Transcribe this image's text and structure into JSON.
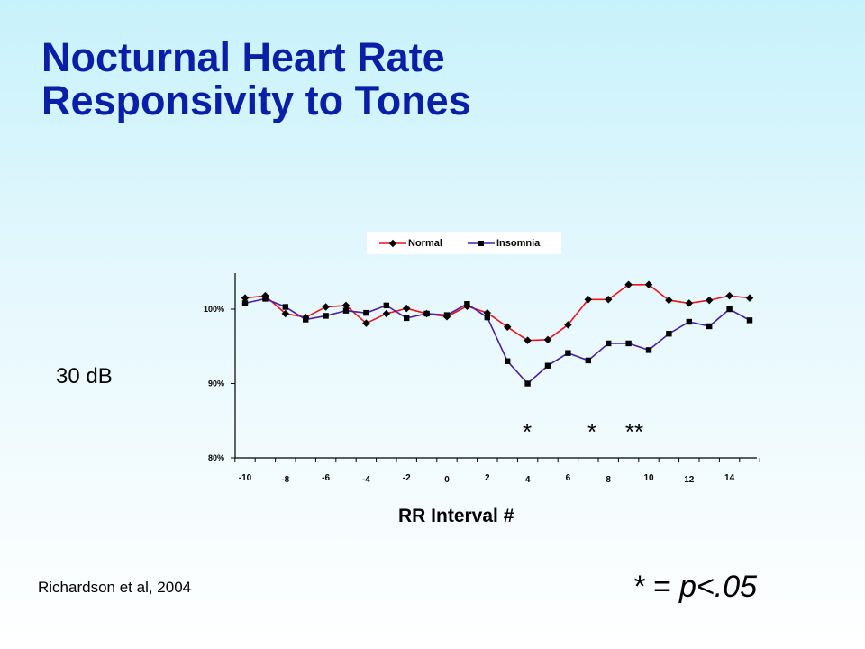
{
  "slide": {
    "title_line1": "Nocturnal Heart Rate",
    "title_line2": "Responsivity to Tones",
    "condition_label": "30 dB",
    "citation": "Richardson et al, 2004",
    "significance_note": "* = p<.05"
  },
  "colors": {
    "title": "#0a1fa8",
    "normal": "#e8141e",
    "insomnia": "#4a1fa0",
    "marker": "#000000"
  },
  "chart_data": {
    "type": "line",
    "xlabel": "RR Interval #",
    "ylabel": "",
    "x_tick_labels": [
      "-10",
      "-8",
      "-6",
      "-4",
      "-2",
      "0",
      "2",
      "4",
      "6",
      "8",
      "10",
      "12",
      "14"
    ],
    "y_tick_labels": [
      "80%",
      "90%",
      "100%"
    ],
    "ylim": [
      80,
      105
    ],
    "legend_position": "top",
    "series": [
      {
        "name": "Normal",
        "color": "#e8141e",
        "values": [
          101.5,
          101.8,
          99.4,
          98.9,
          100.3,
          100.5,
          98.1,
          99.4,
          100.1,
          99.4,
          99.0,
          100.4,
          99.5,
          97.6,
          95.8,
          95.9,
          97.9,
          101.3,
          101.3,
          103.3,
          103.3,
          101.2,
          100.8,
          101.2,
          101.8,
          101.5
        ]
      },
      {
        "name": "Insomnia",
        "color": "#4a1fa0",
        "values": [
          100.8,
          101.4,
          100.3,
          98.6,
          99.1,
          99.8,
          99.5,
          100.5,
          98.8,
          99.4,
          99.2,
          100.7,
          98.9,
          93.0,
          90.0,
          92.4,
          94.1,
          93.1,
          95.4,
          95.4,
          94.5,
          96.7,
          98.3,
          97.7,
          100.0,
          98.5
        ]
      }
    ],
    "significance_markers": [
      "*",
      "*",
      "**"
    ]
  }
}
